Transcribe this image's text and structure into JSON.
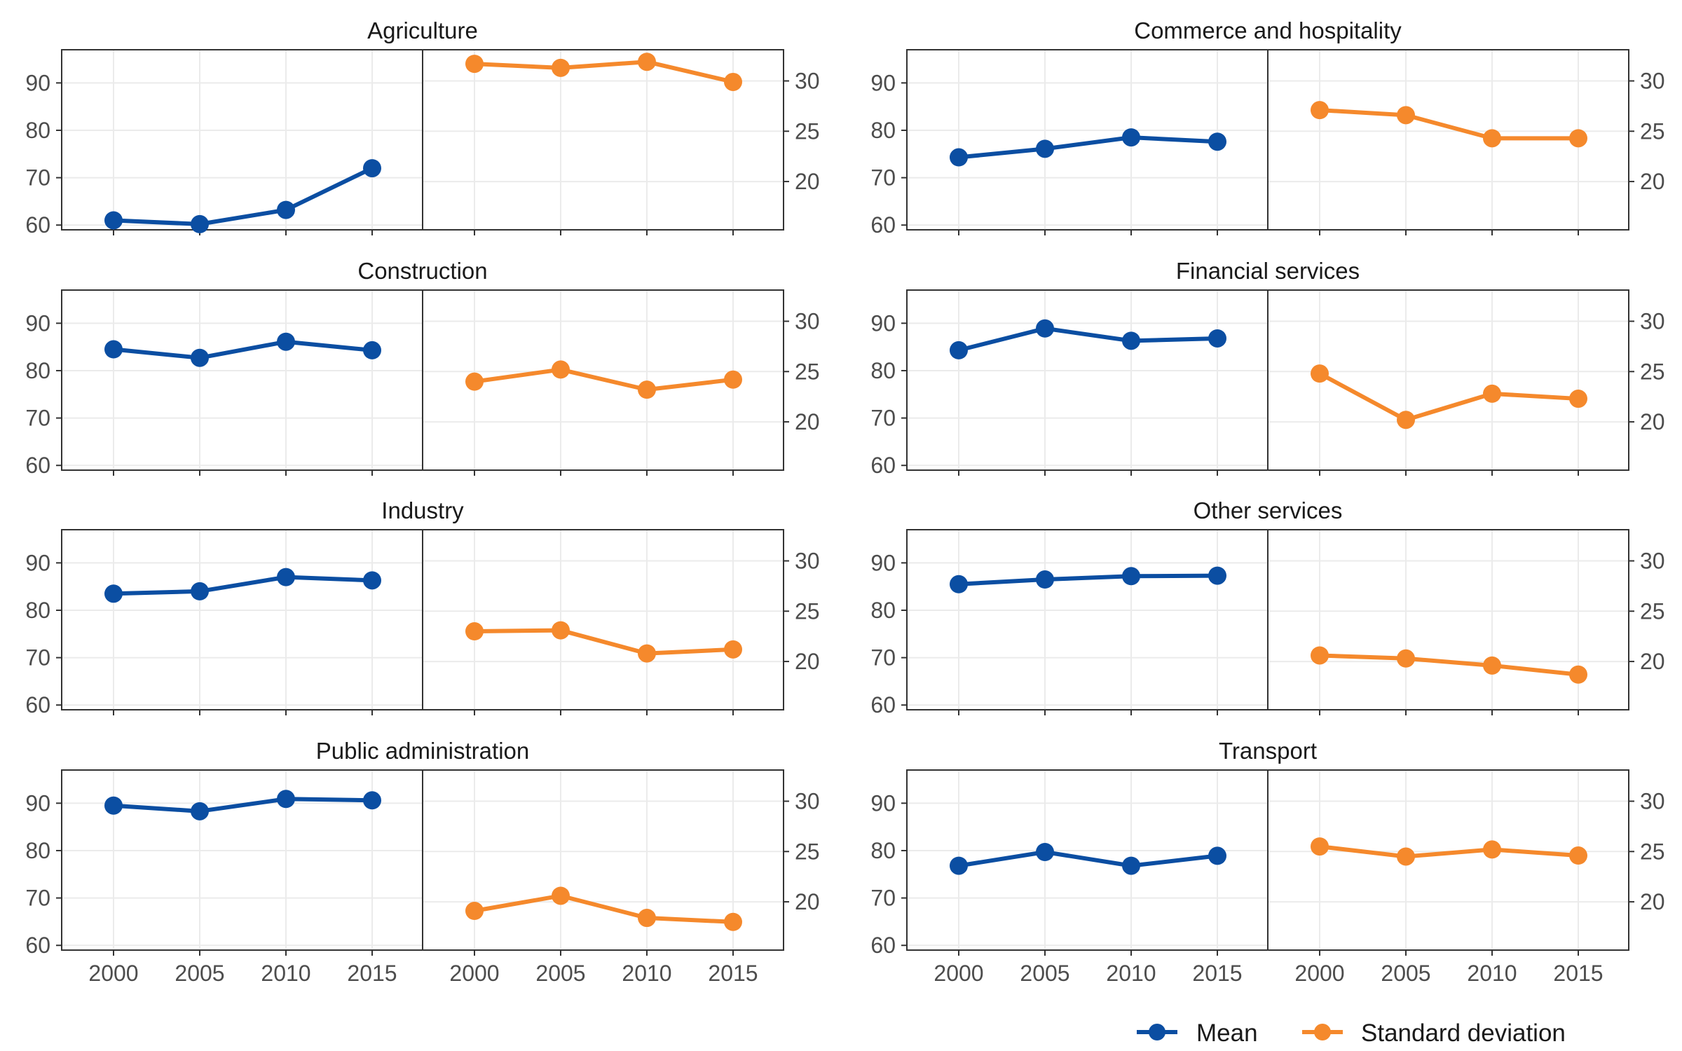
{
  "chart_data": {
    "type": "line",
    "x": [
      2000,
      2005,
      2010,
      2015
    ],
    "x_ticks": [
      "2000",
      "2005",
      "2010",
      "2015"
    ],
    "mean_axis": {
      "range": [
        59,
        97
      ],
      "ticks": [
        60,
        70,
        80,
        90
      ]
    },
    "sd_axis": {
      "range": [
        15.2,
        33.1
      ],
      "ticks": [
        20,
        25,
        30
      ]
    },
    "grid": true,
    "legend_position": "bottom-right",
    "colors": {
      "mean": "#0b4ea2",
      "sd": "#f5892c"
    },
    "legend": {
      "mean": "Mean",
      "sd": "Standard deviation"
    },
    "panels": [
      {
        "title": "Agriculture",
        "mean": [
          61,
          60.2,
          63.2,
          72
        ],
        "sd": [
          31.7,
          31.3,
          31.9,
          29.9
        ]
      },
      {
        "title": "Commerce and hospitality",
        "mean": [
          74.3,
          76.1,
          78.5,
          77.6
        ],
        "sd": [
          27.1,
          26.6,
          24.3,
          24.3
        ]
      },
      {
        "title": "Construction",
        "mean": [
          84.5,
          82.7,
          86.1,
          84.3
        ],
        "sd": [
          24,
          25.2,
          23.2,
          24.2
        ]
      },
      {
        "title": "Financial services",
        "mean": [
          84.3,
          88.9,
          86.3,
          86.8
        ],
        "sd": [
          24.8,
          20.2,
          22.8,
          22.3
        ]
      },
      {
        "title": "Industry",
        "mean": [
          83.5,
          84,
          87,
          86.3
        ],
        "sd": [
          23,
          23.1,
          20.8,
          21.2
        ]
      },
      {
        "title": "Other services",
        "mean": [
          85.5,
          86.5,
          87.2,
          87.3
        ],
        "sd": [
          20.6,
          20.3,
          19.6,
          18.7
        ]
      },
      {
        "title": "Public administration",
        "mean": [
          89.5,
          88.3,
          90.9,
          90.6
        ],
        "sd": [
          19.1,
          20.6,
          18.4,
          18
        ]
      },
      {
        "title": "Transport",
        "mean": [
          76.8,
          79.7,
          76.8,
          78.9
        ],
        "sd": [
          25.5,
          24.5,
          25.2,
          24.6
        ]
      }
    ]
  }
}
